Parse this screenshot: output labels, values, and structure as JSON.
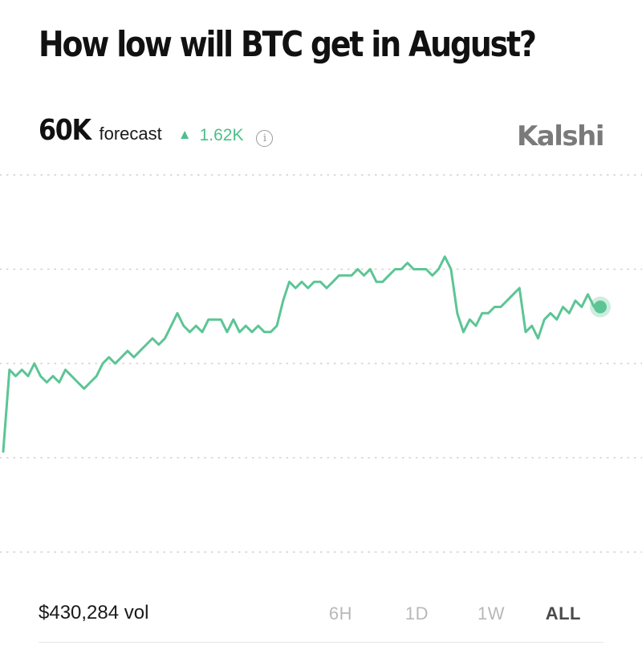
{
  "header": {
    "title": "How low will BTC get in August?",
    "forecast_value": "60K",
    "forecast_label": "forecast",
    "change_value": "1.62K",
    "change_direction": "up",
    "brand": "Kalshi"
  },
  "footer": {
    "volume": "$430,284 vol",
    "ranges": [
      "6H",
      "1D",
      "1W",
      "ALL"
    ],
    "active_range": "ALL"
  },
  "colors": {
    "line": "#5cc595",
    "up": "#4cbf8b",
    "grid": "#cfcfcf"
  },
  "chart_data": {
    "type": "line",
    "gridlines": 5,
    "series": [
      {
        "values": [
          [
            0,
            16
          ],
          [
            1,
            29
          ],
          [
            2,
            28
          ],
          [
            3,
            29
          ],
          [
            4,
            28
          ],
          [
            5,
            30
          ],
          [
            6,
            28
          ],
          [
            7,
            27
          ],
          [
            8,
            28
          ],
          [
            9,
            27
          ],
          [
            10,
            29
          ],
          [
            11,
            28
          ],
          [
            12,
            27
          ],
          [
            13,
            26
          ],
          [
            14,
            27
          ],
          [
            15,
            28
          ],
          [
            16,
            30
          ],
          [
            17,
            31
          ],
          [
            18,
            30
          ],
          [
            19,
            31
          ],
          [
            20,
            32
          ],
          [
            21,
            31
          ],
          [
            22,
            32
          ],
          [
            23,
            33
          ],
          [
            24,
            34
          ],
          [
            25,
            33
          ],
          [
            26,
            34
          ],
          [
            27,
            36
          ],
          [
            28,
            38
          ],
          [
            29,
            36
          ],
          [
            30,
            35
          ],
          [
            31,
            36
          ],
          [
            32,
            35
          ],
          [
            33,
            37
          ],
          [
            34,
            37
          ],
          [
            35,
            37
          ],
          [
            36,
            35
          ],
          [
            37,
            37
          ],
          [
            38,
            35
          ],
          [
            39,
            36
          ],
          [
            40,
            35
          ],
          [
            41,
            36
          ],
          [
            42,
            35
          ],
          [
            43,
            35
          ],
          [
            44,
            36
          ],
          [
            45,
            40
          ],
          [
            46,
            43
          ],
          [
            47,
            42
          ],
          [
            48,
            43
          ],
          [
            49,
            42
          ],
          [
            50,
            43
          ],
          [
            51,
            43
          ],
          [
            52,
            42
          ],
          [
            53,
            43
          ],
          [
            54,
            44
          ],
          [
            55,
            44
          ],
          [
            56,
            44
          ],
          [
            57,
            45
          ],
          [
            58,
            44
          ],
          [
            59,
            45
          ],
          [
            60,
            43
          ],
          [
            61,
            43
          ],
          [
            62,
            44
          ],
          [
            63,
            45
          ],
          [
            64,
            45
          ],
          [
            65,
            46
          ],
          [
            66,
            45
          ],
          [
            67,
            45
          ],
          [
            68,
            45
          ],
          [
            69,
            44
          ],
          [
            70,
            45
          ],
          [
            71,
            47
          ],
          [
            72,
            45
          ],
          [
            73,
            38
          ],
          [
            74,
            35
          ],
          [
            75,
            37
          ],
          [
            76,
            36
          ],
          [
            77,
            38
          ],
          [
            78,
            38
          ],
          [
            79,
            39
          ],
          [
            80,
            39
          ],
          [
            81,
            40
          ],
          [
            82,
            41
          ],
          [
            83,
            42
          ],
          [
            84,
            35
          ],
          [
            85,
            36
          ],
          [
            86,
            34
          ],
          [
            87,
            37
          ],
          [
            88,
            38
          ],
          [
            89,
            37
          ],
          [
            90,
            39
          ],
          [
            91,
            38
          ],
          [
            92,
            40
          ],
          [
            93,
            39
          ],
          [
            94,
            41
          ],
          [
            95,
            39
          ],
          [
            96,
            39
          ]
        ]
      }
    ]
  }
}
